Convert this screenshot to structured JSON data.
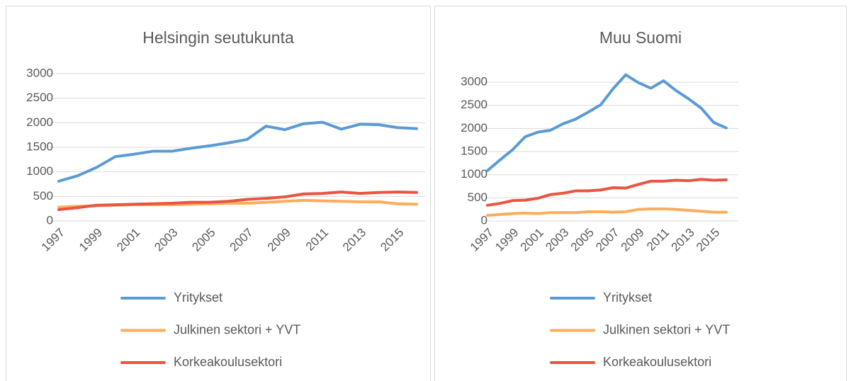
{
  "chart_data": [
    {
      "type": "line",
      "title": "Helsingin seutukunta",
      "categories": [
        "1997",
        null,
        "1999",
        null,
        "2001",
        null,
        "2003",
        null,
        "2005",
        null,
        "2007",
        null,
        "2009",
        null,
        "2011",
        null,
        "2013",
        null,
        "2015",
        null
      ],
      "ylim": [
        0,
        3000
      ],
      "yticks": [
        0,
        500,
        1000,
        1500,
        2000,
        2500,
        3000
      ],
      "grid": true,
      "series": [
        {
          "name": "Yritykset",
          "color": "#5b9bd5",
          "values": [
            810,
            920,
            1090,
            1310,
            1360,
            1420,
            1420,
            1480,
            1530,
            1590,
            1660,
            1930,
            1860,
            1980,
            2010,
            1870,
            1970,
            1960,
            1900,
            1880
          ]
        },
        {
          "name": "Julkinen sektori + YVT",
          "color": "#ffac5c",
          "values": [
            280,
            300,
            310,
            320,
            330,
            330,
            330,
            340,
            350,
            360,
            360,
            380,
            400,
            420,
            410,
            400,
            390,
            390,
            350,
            340
          ]
        },
        {
          "name": "Korkeakoulusektori",
          "color": "#ea5440",
          "values": [
            230,
            270,
            320,
            330,
            340,
            350,
            360,
            380,
            380,
            400,
            440,
            460,
            490,
            550,
            560,
            590,
            560,
            580,
            590,
            580
          ]
        }
      ]
    },
    {
      "type": "line",
      "title": "Muu Suomi",
      "categories": [
        "1997",
        null,
        "1999",
        null,
        "2001",
        null,
        "2003",
        null,
        "2005",
        null,
        "2007",
        null,
        "2009",
        null,
        "2011",
        null,
        "2013",
        null,
        "2015",
        null
      ],
      "ylim": [
        0,
        3200
      ],
      "yticks": [
        0,
        500,
        1000,
        1500,
        2000,
        2500,
        3000
      ],
      "grid": true,
      "series": [
        {
          "name": "Yritykset",
          "color": "#5b9bd5",
          "values": [
            1090,
            1320,
            1540,
            1820,
            1920,
            1960,
            2100,
            2200,
            2350,
            2510,
            2860,
            3160,
            2990,
            2870,
            3030,
            2820,
            2640,
            2440,
            2130,
            2010
          ]
        },
        {
          "name": "Julkinen sektori + YVT",
          "color": "#ffac5c",
          "values": [
            120,
            140,
            160,
            170,
            160,
            180,
            180,
            180,
            200,
            200,
            190,
            200,
            250,
            260,
            260,
            250,
            230,
            210,
            190,
            190
          ]
        },
        {
          "name": "Korkeakoulusektori",
          "color": "#ea5440",
          "values": [
            340,
            380,
            440,
            450,
            490,
            570,
            600,
            650,
            650,
            670,
            720,
            710,
            790,
            860,
            860,
            880,
            870,
            900,
            880,
            890
          ]
        }
      ]
    }
  ]
}
